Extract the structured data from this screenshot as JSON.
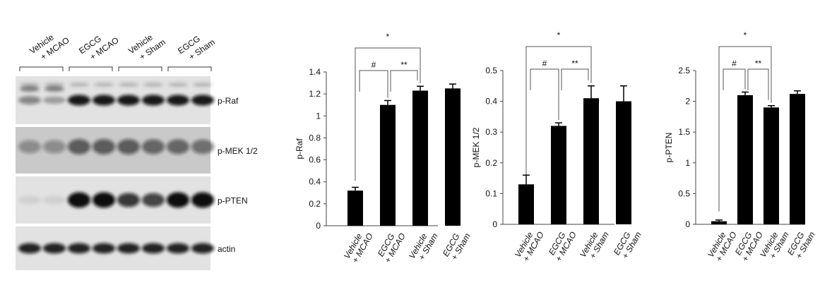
{
  "blot": {
    "groups": [
      [
        "Vehicle",
        "+ MCAO"
      ],
      [
        "EGCG",
        "+ MCAO"
      ],
      [
        "Vehicle",
        "+ Sham"
      ],
      [
        "EGCG",
        "+ Sham"
      ]
    ],
    "rows": [
      "p-Raf",
      "p-MEK 1/2",
      "p-PTEN",
      "actin"
    ]
  },
  "chart_data": [
    {
      "type": "bar",
      "y_label": "p-Raf",
      "categories": [
        [
          "Vehicle",
          "+ MCAO"
        ],
        [
          "EGCG",
          "+ MCAO"
        ],
        [
          "Vehicle",
          "+ Sham"
        ],
        [
          "EGCG",
          "+ Sham"
        ]
      ],
      "values": [
        0.32,
        1.1,
        1.23,
        1.25
      ],
      "errors": [
        0.03,
        0.04,
        0.04,
        0.04
      ],
      "color": "#000000",
      "ylim": [
        0,
        1.4
      ],
      "yticks": [
        0,
        0.2,
        0.4,
        0.6,
        0.8,
        1,
        1.2,
        1.4
      ],
      "significance": [
        "*",
        "#",
        "**"
      ]
    },
    {
      "type": "bar",
      "y_label": "p-MEK 1/2",
      "categories": [
        [
          "Vehicle",
          "+ MCAO"
        ],
        [
          "EGCG",
          "+ MCAO"
        ],
        [
          "Vehicle",
          "+ Sham"
        ],
        [
          "EGCG",
          "+ Sham"
        ]
      ],
      "values": [
        0.13,
        0.32,
        0.41,
        0.4
      ],
      "errors": [
        0.03,
        0.01,
        0.04,
        0.05
      ],
      "color": "#000000",
      "ylim": [
        0,
        0.5
      ],
      "yticks": [
        0,
        0.1,
        0.2,
        0.3,
        0.4,
        0.5
      ],
      "significance": [
        "*",
        "#",
        "**"
      ]
    },
    {
      "type": "bar",
      "y_label": "p-PTEN",
      "categories": [
        [
          "Vehicle",
          "+ MCAO"
        ],
        [
          "EGCG",
          "+ MCAO"
        ],
        [
          "Vehicle",
          "+ Sham"
        ],
        [
          "EGCG",
          "+ Sham"
        ]
      ],
      "values": [
        0.05,
        2.1,
        1.9,
        2.12
      ],
      "errors": [
        0.02,
        0.05,
        0.03,
        0.05
      ],
      "color": "#000000",
      "ylim": [
        0,
        2.5
      ],
      "yticks": [
        0,
        0.5,
        1,
        1.5,
        2,
        2.5
      ],
      "significance": [
        "*",
        "#",
        "**"
      ]
    }
  ]
}
